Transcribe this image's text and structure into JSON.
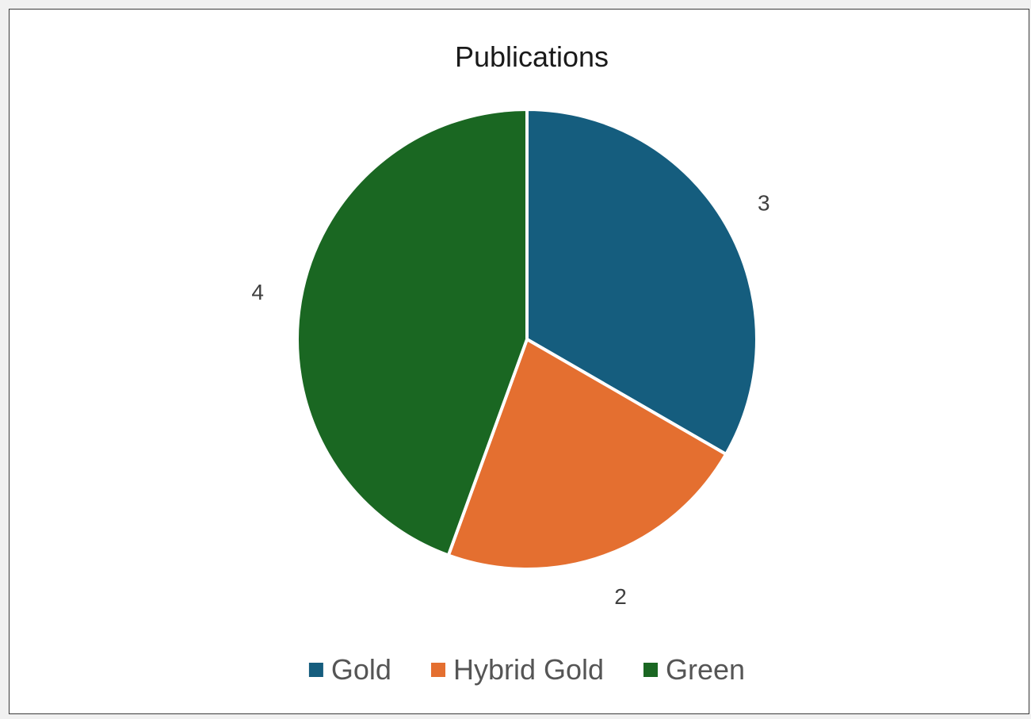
{
  "chart_data": {
    "type": "pie",
    "title": "Publications",
    "categories": [
      "Gold",
      "Hybrid Gold",
      "Green"
    ],
    "values": [
      3,
      2,
      4
    ],
    "data_labels": [
      "3",
      "2",
      "4"
    ],
    "colors": [
      "#155d7e",
      "#e46f30",
      "#1a6722"
    ],
    "start_angle": "12 o'clock",
    "direction": "clockwise",
    "legend_position": "bottom"
  }
}
